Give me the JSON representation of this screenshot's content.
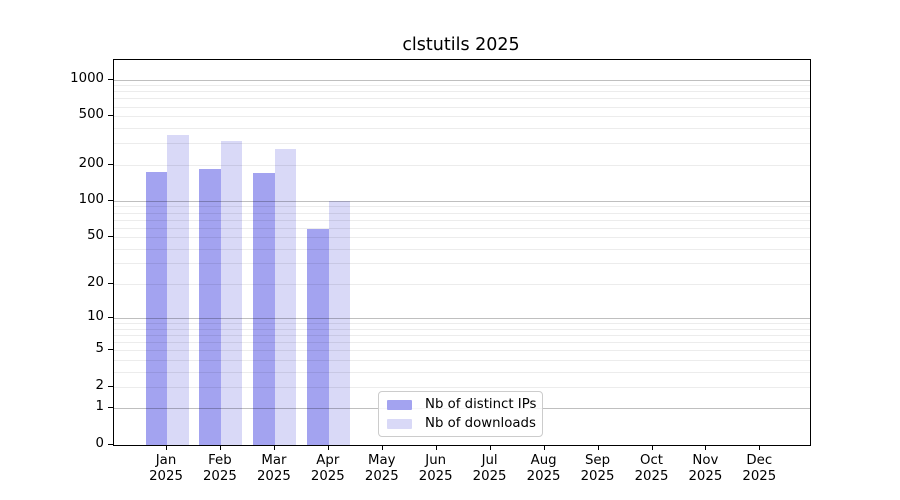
{
  "title": "clstutils 2025",
  "chart_data": {
    "type": "bar",
    "title": "clstutils 2025",
    "categories": [
      "Jan 2025",
      "Feb 2025",
      "Mar 2025",
      "Apr 2025",
      "May 2025",
      "Jun 2025",
      "Jul 2025",
      "Aug 2025",
      "Sep 2025",
      "Oct 2025",
      "Nov 2025",
      "Dec 2025"
    ],
    "month_abbrs": [
      "Jan",
      "Feb",
      "Mar",
      "Apr",
      "May",
      "Jun",
      "Jul",
      "Aug",
      "Sep",
      "Oct",
      "Nov",
      "Dec"
    ],
    "year_label": "2025",
    "series": [
      {
        "name": "Nb of distinct IPs",
        "color": "#a3a3f0",
        "values": [
          175,
          182,
          171,
          58,
          0,
          0,
          0,
          0,
          0,
          0,
          0,
          0
        ]
      },
      {
        "name": "Nb of downloads",
        "color": "#d9d9f7",
        "values": [
          348,
          311,
          269,
          100,
          0,
          0,
          0,
          0,
          0,
          0,
          0,
          0
        ]
      }
    ],
    "yscale": "log1p",
    "yticks": [
      1000,
      500,
      200,
      100,
      50,
      20,
      10,
      5,
      2,
      1,
      0
    ],
    "ytick_major": [
      1000,
      100,
      10,
      1
    ],
    "ylim": [
      0,
      1440
    ],
    "grid": true,
    "gridlines_over_bars": true,
    "legend_position": "lower center",
    "spine_color": "#000000",
    "major_grid_color": "rgba(0,0,0,0.25)",
    "minor_grid_color": "rgba(0,0,0,0.075)"
  },
  "legend": {
    "items": [
      {
        "label": "Nb of distinct IPs",
        "color": "#a3a3f0"
      },
      {
        "label": "Nb of downloads",
        "color": "#d9d9f7"
      }
    ]
  }
}
